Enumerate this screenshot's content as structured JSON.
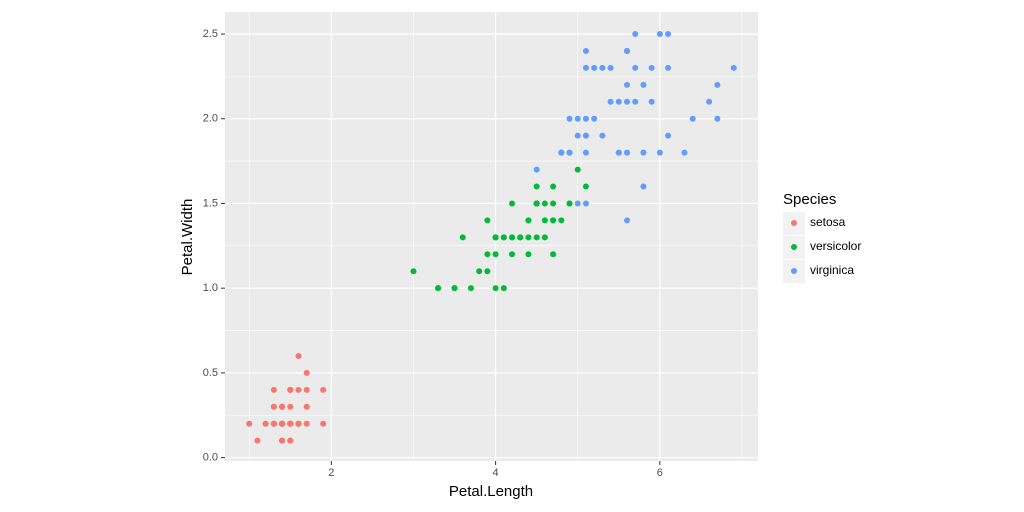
{
  "chart_data": {
    "type": "scatter",
    "xlabel": "Petal.Length",
    "ylabel": "Petal.Width",
    "legend_title": "Species",
    "legend": "right",
    "grid": true,
    "xlim": [
      0.705,
      7.195
    ],
    "ylim": [
      -0.02,
      2.63
    ],
    "xticks": [
      2,
      4,
      6
    ],
    "yticks": [
      {
        "value": 0,
        "label": "0.0"
      },
      0.5,
      {
        "value": 1,
        "label": "1.0"
      },
      1.5,
      {
        "value": 2,
        "label": "2.0"
      },
      2.5
    ],
    "xminor": [
      1,
      3,
      5,
      7
    ],
    "yminor": [
      0.25,
      0.75,
      1.25,
      1.75,
      2.25
    ],
    "series": [
      {
        "name": "setosa",
        "color": "#F8766D",
        "x": [
          1.4,
          1.4,
          1.3,
          1.5,
          1.4,
          1.7,
          1.4,
          1.5,
          1.4,
          1.5,
          1.5,
          1.6,
          1.4,
          1.1,
          1.2,
          1.5,
          1.3,
          1.4,
          1.7,
          1.5,
          1.7,
          1.5,
          1.0,
          1.7,
          1.9,
          1.6,
          1.6,
          1.5,
          1.4,
          1.6,
          1.6,
          1.5,
          1.5,
          1.4,
          1.5,
          1.2,
          1.3,
          1.4,
          1.3,
          1.5,
          1.3,
          1.3,
          1.3,
          1.6,
          1.9,
          1.4,
          1.6,
          1.4,
          1.5,
          1.4
        ],
        "values": [
          0.2,
          0.2,
          0.2,
          0.2,
          0.2,
          0.4,
          0.3,
          0.2,
          0.2,
          0.1,
          0.2,
          0.2,
          0.1,
          0.1,
          0.2,
          0.4,
          0.4,
          0.3,
          0.3,
          0.3,
          0.2,
          0.4,
          0.2,
          0.5,
          0.2,
          0.2,
          0.4,
          0.2,
          0.2,
          0.2,
          0.2,
          0.4,
          0.1,
          0.2,
          0.2,
          0.2,
          0.2,
          0.1,
          0.2,
          0.2,
          0.3,
          0.3,
          0.2,
          0.6,
          0.4,
          0.3,
          0.2,
          0.2,
          0.2,
          0.2
        ]
      },
      {
        "name": "versicolor",
        "color": "#00BA38",
        "x": [
          4.7,
          4.5,
          4.9,
          4.0,
          4.6,
          4.5,
          4.7,
          3.3,
          4.6,
          3.9,
          3.5,
          4.2,
          4.0,
          4.7,
          3.6,
          4.4,
          4.5,
          4.1,
          4.5,
          3.9,
          4.8,
          4.0,
          4.9,
          4.7,
          4.3,
          4.4,
          4.8,
          5.0,
          4.5,
          3.5,
          3.8,
          3.7,
          3.9,
          5.1,
          4.5,
          4.5,
          4.7,
          4.4,
          4.1,
          4.0,
          4.4,
          4.6,
          4.0,
          3.3,
          4.2,
          4.2,
          4.2,
          4.3,
          3.0,
          4.1
        ],
        "values": [
          1.4,
          1.5,
          1.5,
          1.3,
          1.5,
          1.3,
          1.6,
          1.0,
          1.3,
          1.4,
          1.0,
          1.5,
          1.0,
          1.4,
          1.3,
          1.4,
          1.5,
          1.0,
          1.5,
          1.1,
          1.8,
          1.3,
          1.5,
          1.2,
          1.3,
          1.4,
          1.4,
          1.7,
          1.5,
          1.0,
          1.1,
          1.0,
          1.2,
          1.6,
          1.5,
          1.6,
          1.5,
          1.3,
          1.3,
          1.3,
          1.2,
          1.4,
          1.2,
          1.0,
          1.3,
          1.2,
          1.3,
          1.3,
          1.1,
          1.3
        ]
      },
      {
        "name": "virginica",
        "color": "#619CFF",
        "x": [
          6.0,
          5.1,
          5.9,
          5.6,
          5.8,
          6.6,
          4.5,
          6.3,
          5.8,
          6.1,
          5.1,
          5.3,
          5.5,
          5.0,
          5.1,
          5.3,
          5.5,
          6.7,
          6.9,
          5.0,
          5.7,
          4.9,
          6.7,
          4.9,
          5.7,
          6.0,
          4.8,
          4.9,
          5.6,
          5.8,
          6.1,
          6.4,
          5.6,
          5.1,
          5.6,
          6.1,
          5.6,
          5.5,
          4.8,
          5.4,
          5.6,
          5.1,
          5.1,
          5.9,
          5.7,
          5.2,
          5.0,
          5.2,
          5.4,
          5.1
        ],
        "values": [
          2.5,
          1.9,
          2.1,
          1.8,
          2.2,
          2.1,
          1.7,
          1.8,
          1.8,
          2.5,
          2.0,
          1.9,
          2.1,
          2.0,
          2.4,
          2.3,
          1.8,
          2.2,
          2.3,
          1.5,
          2.3,
          2.0,
          2.0,
          1.8,
          2.1,
          1.8,
          1.8,
          1.8,
          2.1,
          1.6,
          1.9,
          2.0,
          2.2,
          1.5,
          1.4,
          2.3,
          2.4,
          1.8,
          1.8,
          2.1,
          2.4,
          2.3,
          1.9,
          2.3,
          2.5,
          2.3,
          1.9,
          2.0,
          2.3,
          1.8
        ]
      }
    ]
  }
}
